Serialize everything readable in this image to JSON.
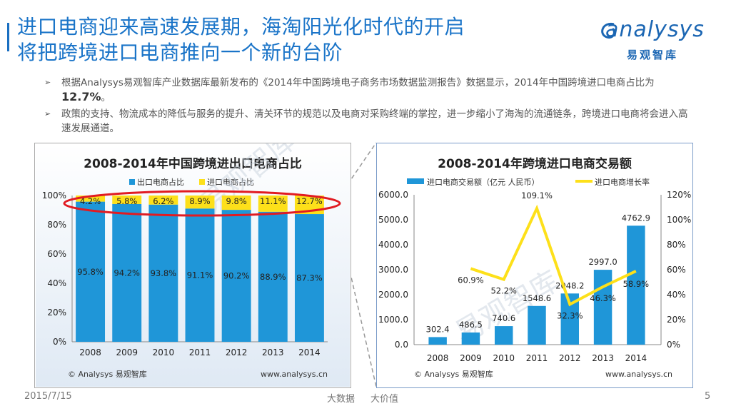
{
  "title": {
    "line1": "进口电商迎来高速发展期，海淘阳光化时代的开启",
    "line2": "将把跨境进口电商推向一个新的台阶"
  },
  "logo": {
    "word": "analysys",
    "cn": "易观智库"
  },
  "bullets": [
    {
      "pre": "根据Analysys易观智库产业数据库最新发布的《2014年中国跨境电子商务市场数据监测报告》数据显示，2014年中国跨境进口电商占比为",
      "highlight": "12.7%",
      "post": "。"
    },
    {
      "pre": "政策的支持、物流成本的降低与服务的提升、清关环节的规范以及电商对采购终端的掌控，进一步缩小了海淘的流通链条，跨境进口电商将会进入高速发展通道。",
      "highlight": "",
      "post": ""
    }
  ],
  "watermark": "易观智库",
  "chart_data": [
    {
      "type": "bar",
      "stacked": true,
      "title": "2008-2014年中国跨境进出口电商占比",
      "categories": [
        "2008",
        "2009",
        "2010",
        "2011",
        "2012",
        "2013",
        "2014"
      ],
      "series": [
        {
          "name": "出口电商占比",
          "color": "#1f96d8",
          "values": [
            95.8,
            94.2,
            93.8,
            91.1,
            90.2,
            88.9,
            87.3
          ],
          "labels": [
            "95.8%",
            "94.2%",
            "93.8%",
            "91.1%",
            "90.2%",
            "88.9%",
            "87.3%"
          ]
        },
        {
          "name": "进口电商占比",
          "color": "#fde01a",
          "values": [
            4.2,
            5.8,
            6.2,
            8.9,
            9.8,
            11.1,
            12.7
          ],
          "labels": [
            "4.2%",
            "5.8%",
            "6.2%",
            "8.9%",
            "9.8%",
            "11.1%",
            "12.7%"
          ]
        }
      ],
      "yticks": [
        "0%",
        "20%",
        "40%",
        "60%",
        "80%",
        "100%"
      ],
      "ylim": [
        0,
        100
      ],
      "source": "© Analysys 易观智库",
      "url": "www.analysys.cn"
    },
    {
      "type": "bar+line",
      "title": "2008-2014年跨境进口电商交易额",
      "categories": [
        "2008",
        "2009",
        "2010",
        "2011",
        "2012",
        "2013",
        "2014"
      ],
      "bars": {
        "name": "进口电商交易额（亿元 人民币）",
        "color": "#1f96d8",
        "values": [
          302.4,
          486.5,
          740.6,
          1548.6,
          2048.2,
          2997.0,
          4762.9
        ],
        "labels": [
          "302.4",
          "486.5",
          "740.6",
          "1548.6",
          "2048.2",
          "2997.0",
          "4762.9"
        ]
      },
      "line": {
        "name": "进口电商增长率",
        "color": "#fde01a",
        "values": [
          null,
          60.9,
          52.2,
          109.1,
          32.3,
          46.3,
          58.9
        ],
        "labels": [
          "",
          "60.9%",
          "52.2%",
          "109.1%",
          "32.3%",
          "46.3%",
          "58.9%"
        ]
      },
      "yleft_ticks": [
        "0.0",
        "1000.0",
        "2000.0",
        "3000.0",
        "4000.0",
        "5000.0",
        "6000.0"
      ],
      "yleft_lim": [
        0,
        6000
      ],
      "yright_ticks": [
        "0%",
        "20%",
        "40%",
        "60%",
        "80%",
        "100%",
        "120%"
      ],
      "yright_lim": [
        0,
        120
      ],
      "source": "© Analysys 易观智库",
      "url": "www.analysys.cn"
    }
  ],
  "footer": {
    "date": "2015/7/15",
    "center1": "大数据",
    "center2": "大价值",
    "page": "5"
  }
}
